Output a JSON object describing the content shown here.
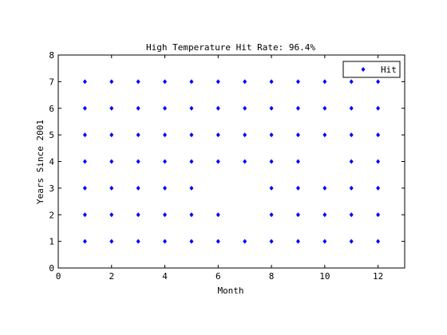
{
  "chart_data": {
    "type": "scatter",
    "title": "High Temperature Hit Rate: 96.4%",
    "xlabel": "Month",
    "ylabel": "Years Since 2001",
    "xlim": [
      0,
      13
    ],
    "ylim": [
      0,
      8
    ],
    "xticks": [
      0,
      2,
      4,
      6,
      8,
      10,
      12
    ],
    "yticks": [
      0,
      1,
      2,
      3,
      4,
      5,
      6,
      7,
      8
    ],
    "grid": false,
    "legend_position": "top-right",
    "series": [
      {
        "name": "Hit",
        "color": "#0000ff",
        "marker": "diamond",
        "points": [
          [
            1,
            1
          ],
          [
            2,
            1
          ],
          [
            3,
            1
          ],
          [
            4,
            1
          ],
          [
            5,
            1
          ],
          [
            6,
            1
          ],
          [
            7,
            1
          ],
          [
            8,
            1
          ],
          [
            9,
            1
          ],
          [
            10,
            1
          ],
          [
            11,
            1
          ],
          [
            12,
            1
          ],
          [
            1,
            2
          ],
          [
            2,
            2
          ],
          [
            3,
            2
          ],
          [
            4,
            2
          ],
          [
            5,
            2
          ],
          [
            6,
            2
          ],
          [
            8,
            2
          ],
          [
            9,
            2
          ],
          [
            10,
            2
          ],
          [
            11,
            2
          ],
          [
            12,
            2
          ],
          [
            1,
            3
          ],
          [
            2,
            3
          ],
          [
            3,
            3
          ],
          [
            4,
            3
          ],
          [
            5,
            3
          ],
          [
            8,
            3
          ],
          [
            9,
            3
          ],
          [
            10,
            3
          ],
          [
            11,
            3
          ],
          [
            12,
            3
          ],
          [
            1,
            4
          ],
          [
            2,
            4
          ],
          [
            3,
            4
          ],
          [
            4,
            4
          ],
          [
            5,
            4
          ],
          [
            6,
            4
          ],
          [
            7,
            4
          ],
          [
            8,
            4
          ],
          [
            9,
            4
          ],
          [
            11,
            4
          ],
          [
            12,
            4
          ],
          [
            1,
            5
          ],
          [
            2,
            5
          ],
          [
            3,
            5
          ],
          [
            4,
            5
          ],
          [
            5,
            5
          ],
          [
            6,
            5
          ],
          [
            7,
            5
          ],
          [
            8,
            5
          ],
          [
            9,
            5
          ],
          [
            10,
            5
          ],
          [
            11,
            5
          ],
          [
            12,
            5
          ],
          [
            1,
            6
          ],
          [
            2,
            6
          ],
          [
            3,
            6
          ],
          [
            4,
            6
          ],
          [
            5,
            6
          ],
          [
            6,
            6
          ],
          [
            7,
            6
          ],
          [
            8,
            6
          ],
          [
            9,
            6
          ],
          [
            10,
            6
          ],
          [
            11,
            6
          ],
          [
            12,
            6
          ],
          [
            1,
            7
          ],
          [
            2,
            7
          ],
          [
            3,
            7
          ],
          [
            4,
            7
          ],
          [
            5,
            7
          ],
          [
            6,
            7
          ],
          [
            7,
            7
          ],
          [
            8,
            7
          ],
          [
            9,
            7
          ],
          [
            10,
            7
          ],
          [
            11,
            7
          ],
          [
            12,
            7
          ]
        ]
      }
    ]
  }
}
